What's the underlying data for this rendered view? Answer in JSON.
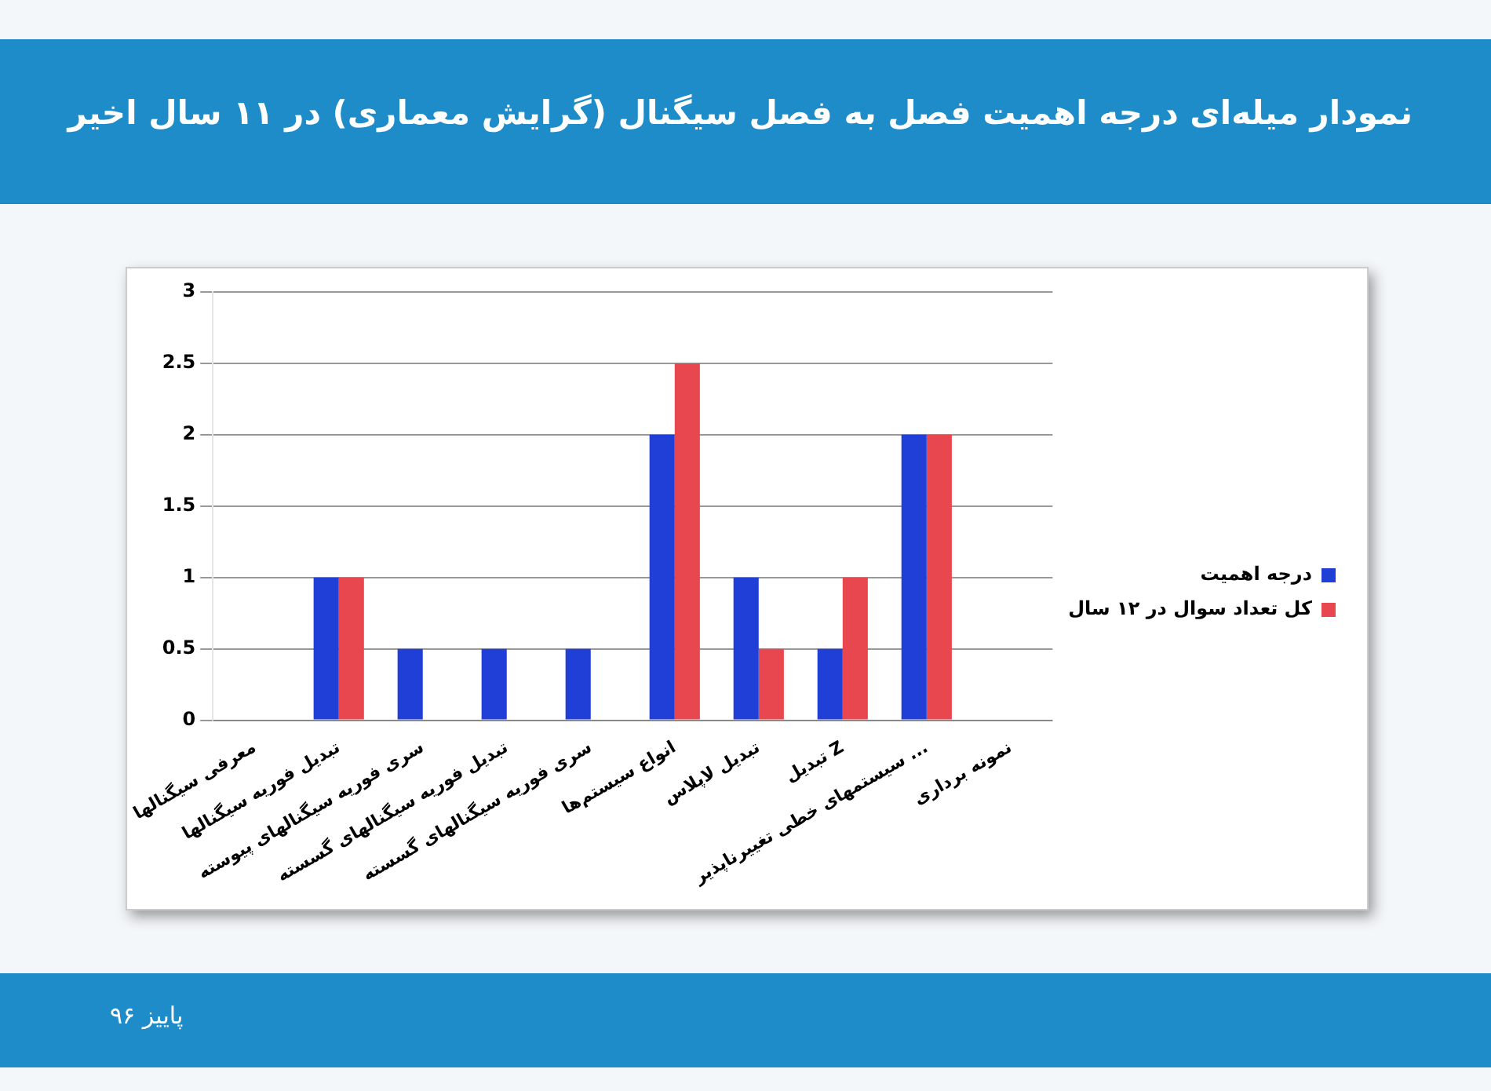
{
  "chart_data": {
    "type": "bar",
    "title": "نمودار میله‌ای درجه اهمیت فصل به فصل سیگنال (گرایش معماری) در ۱۱ سال اخیر",
    "categories": [
      "معرفی سیگنالها",
      "تبدیل فوریه سیگنالها",
      "سری فوریه سیگنالهای پیوسته",
      "تبدیل فوریه سیگنالهای گسسته",
      "سری فوریه سیگنالهای گسسته",
      "انواع سیستم‌ها",
      "تبدیل لاپلاس",
      "تبدیل Z",
      "سیستمهای خطی تغییرناپذیر ...",
      "نمونه برداری"
    ],
    "series": [
      {
        "name": "درجه اهمیت",
        "color": "#1f3fd6",
        "values": [
          0,
          1,
          0.5,
          0.5,
          0.5,
          2,
          1,
          0.5,
          2,
          0
        ]
      },
      {
        "name": "کل تعداد سوال در ۱۲ سال",
        "color": "#e8474f",
        "values": [
          0,
          1,
          0,
          0,
          0,
          2.5,
          0.5,
          1,
          2,
          0
        ]
      }
    ],
    "ylim": [
      0,
      3
    ],
    "yticks": [
      0,
      0.5,
      1,
      1.5,
      2,
      2.5,
      3
    ],
    "grid": "y",
    "legend": "right",
    "annotations": [
      "پاییز ۹۶"
    ]
  }
}
